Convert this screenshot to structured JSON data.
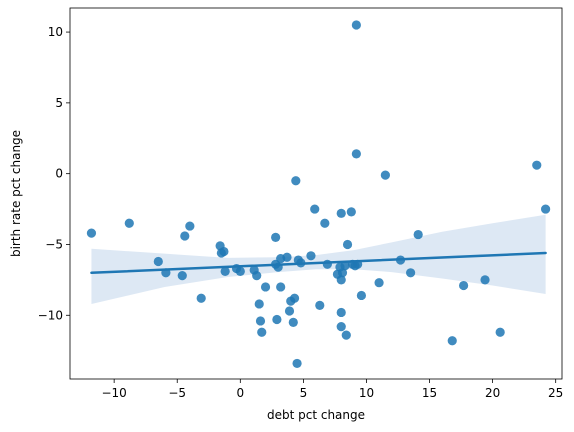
{
  "chart_data": {
    "type": "scatter",
    "title": "",
    "xlabel": "debt pct change",
    "ylabel": "birth rate pct change",
    "xlim": [
      -13.5,
      25.5
    ],
    "ylim": [
      -14.5,
      11.7
    ],
    "xticks": [
      -10,
      -5,
      0,
      5,
      10,
      15,
      20,
      25
    ],
    "yticks": [
      -10,
      -5,
      0,
      5,
      10
    ],
    "grid": false,
    "colors": {
      "points": "#1f77b4",
      "line": "#1f77b4",
      "band": "#c6d9ec"
    },
    "regression": {
      "x_start": -11.8,
      "y_start": -7.0,
      "x_end": 24.2,
      "y_end": -5.6
    },
    "confidence_band": {
      "x": [
        -11.8,
        -6,
        -1,
        3,
        6,
        9,
        12,
        16,
        20,
        24.2
      ],
      "upper": [
        -5.3,
        -5.65,
        -5.95,
        -5.9,
        -5.75,
        -5.4,
        -4.85,
        -4.1,
        -3.5,
        -2.9
      ],
      "lower": [
        -9.2,
        -8.0,
        -7.3,
        -6.95,
        -6.75,
        -6.75,
        -6.95,
        -7.4,
        -7.9,
        -8.5
      ]
    },
    "points": [
      {
        "x": -11.8,
        "y": -4.2
      },
      {
        "x": -8.8,
        "y": -3.5
      },
      {
        "x": -6.5,
        "y": -6.2
      },
      {
        "x": -5.9,
        "y": -7.0
      },
      {
        "x": -4.6,
        "y": -7.2
      },
      {
        "x": -4.4,
        "y": -4.4
      },
      {
        "x": -4.0,
        "y": -3.7
      },
      {
        "x": -3.1,
        "y": -8.8
      },
      {
        "x": -1.6,
        "y": -5.1
      },
      {
        "x": -1.5,
        "y": -5.6
      },
      {
        "x": -1.3,
        "y": -5.5
      },
      {
        "x": -1.2,
        "y": -6.9
      },
      {
        "x": -0.3,
        "y": -6.7
      },
      {
        "x": 0.0,
        "y": -6.9
      },
      {
        "x": 1.1,
        "y": -6.8
      },
      {
        "x": 1.3,
        "y": -7.2
      },
      {
        "x": 1.5,
        "y": -9.2
      },
      {
        "x": 1.6,
        "y": -10.4
      },
      {
        "x": 1.7,
        "y": -11.2
      },
      {
        "x": 2.0,
        "y": -8.0
      },
      {
        "x": 2.8,
        "y": -6.4
      },
      {
        "x": 2.8,
        "y": -4.5
      },
      {
        "x": 2.9,
        "y": -10.3
      },
      {
        "x": 3.0,
        "y": -6.6
      },
      {
        "x": 3.2,
        "y": -6.0
      },
      {
        "x": 3.2,
        "y": -8.0
      },
      {
        "x": 3.7,
        "y": -5.9
      },
      {
        "x": 3.9,
        "y": -9.7
      },
      {
        "x": 4.0,
        "y": -9.0
      },
      {
        "x": 4.2,
        "y": -10.5
      },
      {
        "x": 4.3,
        "y": -8.8
      },
      {
        "x": 4.4,
        "y": -0.5
      },
      {
        "x": 4.5,
        "y": -13.4
      },
      {
        "x": 4.6,
        "y": -6.1
      },
      {
        "x": 4.8,
        "y": -6.3
      },
      {
        "x": 5.6,
        "y": -5.8
      },
      {
        "x": 5.9,
        "y": -2.5
      },
      {
        "x": 6.3,
        "y": -9.3
      },
      {
        "x": 6.7,
        "y": -3.5
      },
      {
        "x": 6.9,
        "y": -6.4
      },
      {
        "x": 7.7,
        "y": -7.1
      },
      {
        "x": 7.9,
        "y": -6.6
      },
      {
        "x": 8.0,
        "y": -7.5
      },
      {
        "x": 8.0,
        "y": -9.8
      },
      {
        "x": 8.0,
        "y": -10.8
      },
      {
        "x": 8.0,
        "y": -2.8
      },
      {
        "x": 8.1,
        "y": -7.0
      },
      {
        "x": 8.3,
        "y": -6.5
      },
      {
        "x": 8.4,
        "y": -11.4
      },
      {
        "x": 8.5,
        "y": -5.0
      },
      {
        "x": 8.8,
        "y": -2.7
      },
      {
        "x": 8.9,
        "y": -6.4
      },
      {
        "x": 9.1,
        "y": -6.5
      },
      {
        "x": 9.2,
        "y": 1.4
      },
      {
        "x": 9.3,
        "y": -6.4
      },
      {
        "x": 9.2,
        "y": 10.5
      },
      {
        "x": 9.6,
        "y": -8.6
      },
      {
        "x": 11.0,
        "y": -7.7
      },
      {
        "x": 11.5,
        "y": -0.1
      },
      {
        "x": 12.7,
        "y": -6.1
      },
      {
        "x": 13.5,
        "y": -7.0
      },
      {
        "x": 14.1,
        "y": -4.3
      },
      {
        "x": 16.8,
        "y": -11.8
      },
      {
        "x": 17.7,
        "y": -7.9
      },
      {
        "x": 19.4,
        "y": -7.5
      },
      {
        "x": 20.6,
        "y": -11.2
      },
      {
        "x": 23.5,
        "y": 0.6
      },
      {
        "x": 24.2,
        "y": -2.5
      }
    ]
  }
}
